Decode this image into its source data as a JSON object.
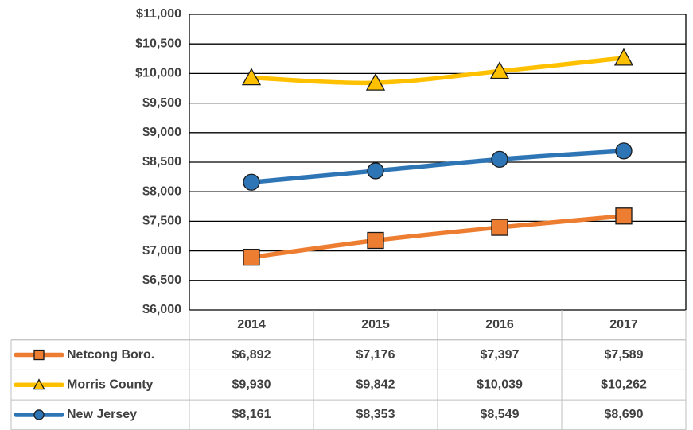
{
  "chart_data": {
    "type": "line",
    "smooth": true,
    "categories": [
      "2014",
      "2015",
      "2016",
      "2017"
    ],
    "ylim": [
      6000,
      11000
    ],
    "yticks": [
      {
        "value": 6000,
        "label": "$6,000"
      },
      {
        "value": 6500,
        "label": "$6,500"
      },
      {
        "value": 7000,
        "label": "$7,000"
      },
      {
        "value": 7500,
        "label": "$7,500"
      },
      {
        "value": 8000,
        "label": "$8,000"
      },
      {
        "value": 8500,
        "label": "$8,500"
      },
      {
        "value": 9000,
        "label": "$9,000"
      },
      {
        "value": 9500,
        "label": "$9,500"
      },
      {
        "value": 10000,
        "label": "$10,000"
      },
      {
        "value": 10500,
        "label": "$10,500"
      },
      {
        "value": 11000,
        "label": "$11,000"
      }
    ],
    "grid": true,
    "series": [
      {
        "name": "Netcong Boro.",
        "color": "#ED7D31",
        "marker": "square",
        "values": [
          6892,
          7176,
          7397,
          7589
        ],
        "value_labels": [
          "$6,892",
          "$7,176",
          "$7,397",
          "$7,589"
        ]
      },
      {
        "name": "Morris County",
        "color": "#FFC000",
        "marker": "triangle",
        "values": [
          9930,
          9842,
          10039,
          10262
        ],
        "value_labels": [
          "$9,930",
          "$9,842",
          "$10,039",
          "$10,262"
        ]
      },
      {
        "name": "New Jersey",
        "color": "#2E75B6",
        "marker": "circle",
        "values": [
          8161,
          8353,
          8549,
          8690
        ],
        "value_labels": [
          "$8,161",
          "$8,353",
          "$8,549",
          "$8,690"
        ]
      }
    ]
  }
}
